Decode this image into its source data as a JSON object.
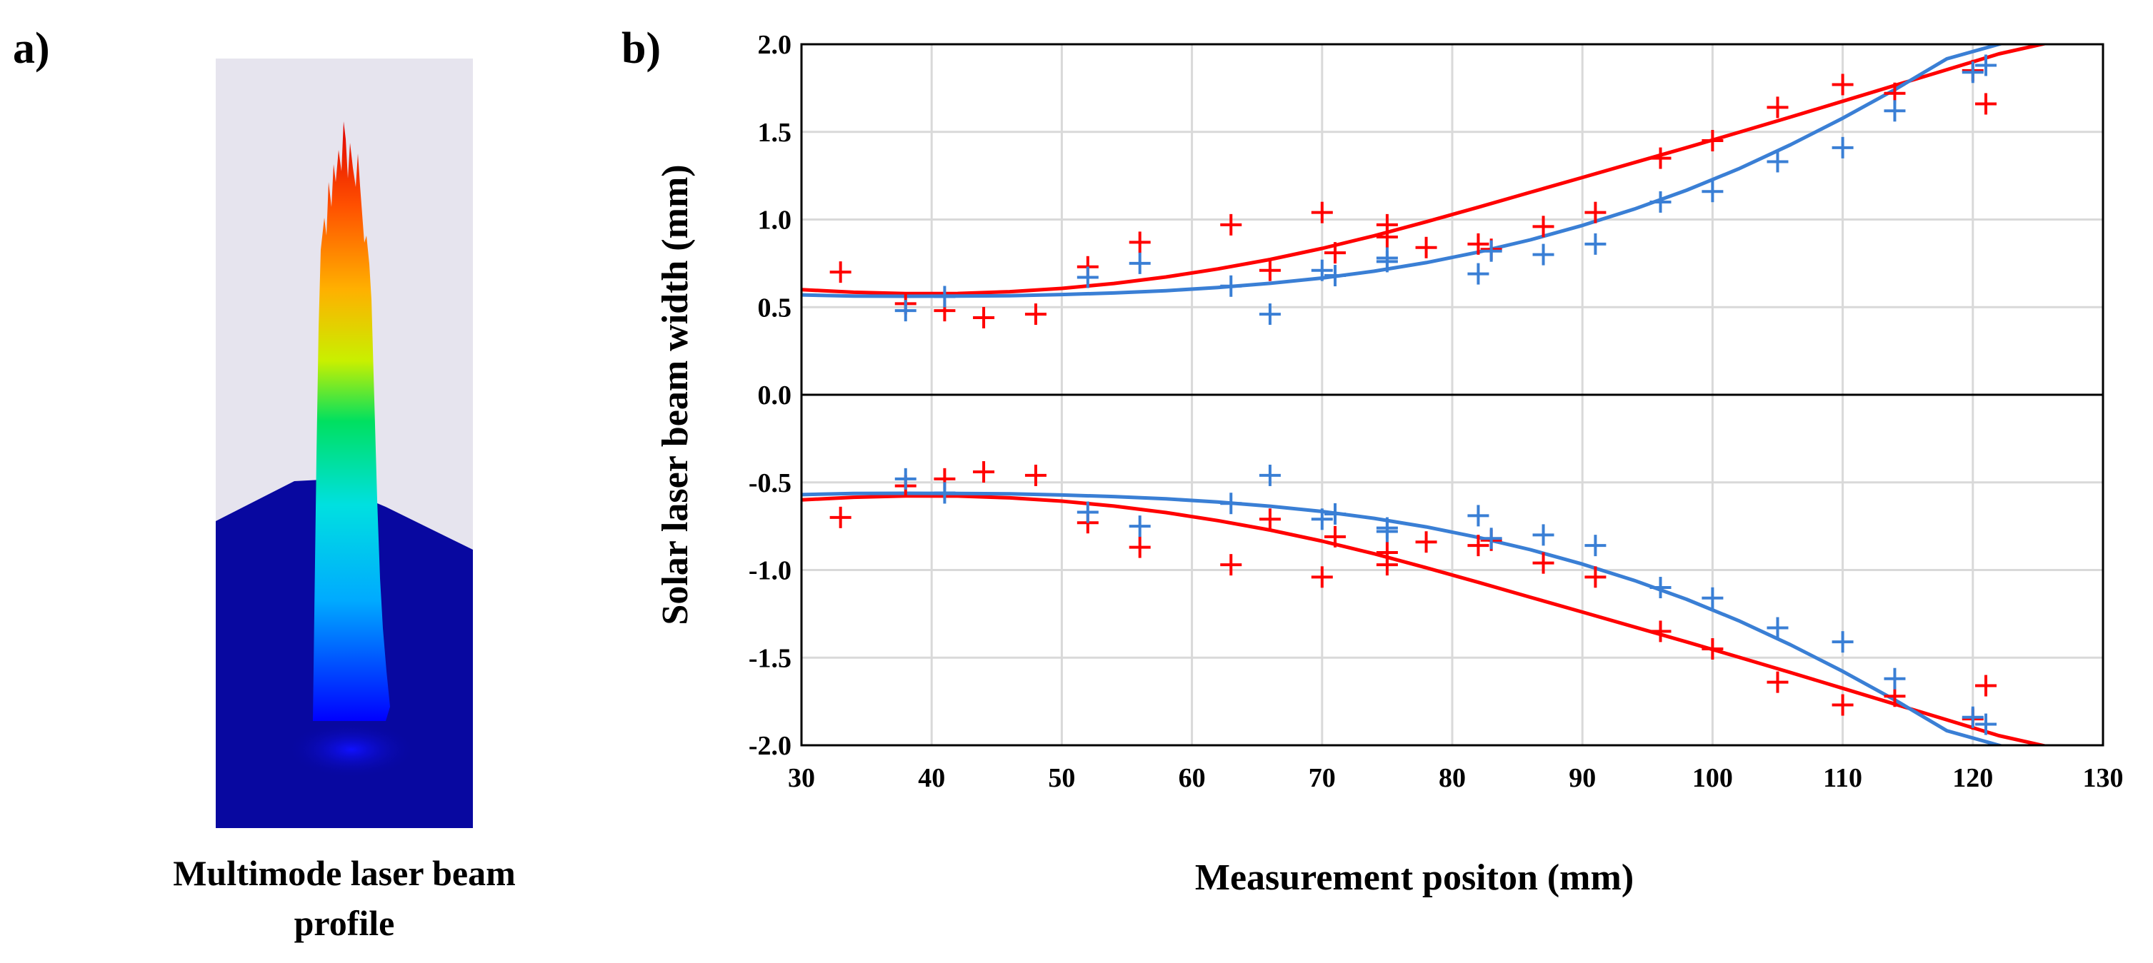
{
  "panel_a": {
    "label": "a)",
    "caption_line1": "Multimode laser beam",
    "caption_line2": "profile",
    "colors": {
      "background": "#e6e4ee",
      "base": "#0808a0",
      "peak": "#e00000"
    }
  },
  "panel_b": {
    "label": "b)"
  },
  "chart_data": {
    "type": "scatter",
    "title": "",
    "xlabel": "Measurement positon (mm)",
    "ylabel": "Solar laser beam width (mm)",
    "xlim": [
      30,
      130
    ],
    "ylim": [
      -2.0,
      2.0
    ],
    "xticks": [
      30,
      40,
      50,
      60,
      70,
      80,
      90,
      100,
      110,
      120,
      130
    ],
    "xtick_labels": [
      "30",
      "40",
      "50",
      "60",
      "70",
      "80",
      "90",
      "100",
      "110",
      "120",
      "130"
    ],
    "yticks": [
      2.0,
      1.5,
      1.0,
      0.5,
      0.0,
      -0.5,
      -1.0,
      -1.5,
      -2.0
    ],
    "ytick_labels": [
      "2.0",
      "1.5",
      "1.0",
      "0.5",
      "0.0",
      "-0.5",
      "-1.0",
      "-1.5",
      "-2.0"
    ],
    "grid": true,
    "legend": "none",
    "series": [
      {
        "name": "red measurements",
        "color": "#ff0000",
        "marker": "plus",
        "symmetric": true,
        "x": [
          33,
          38,
          41,
          44,
          48,
          52,
          56,
          63,
          66,
          70,
          71,
          75,
          75,
          78,
          82,
          83,
          87,
          91,
          96,
          100,
          105,
          110,
          114,
          120,
          121
        ],
        "y": [
          0.7,
          0.52,
          0.48,
          0.44,
          0.46,
          0.73,
          0.87,
          0.97,
          0.71,
          1.04,
          0.81,
          0.97,
          0.9,
          0.84,
          0.86,
          0.83,
          0.96,
          1.04,
          1.35,
          1.45,
          1.64,
          1.77,
          1.72,
          1.85,
          1.66
        ]
      },
      {
        "name": "blue measurements",
        "color": "#3a7fd5",
        "marker": "plus",
        "symmetric": true,
        "x": [
          38,
          41,
          52,
          56,
          63,
          66,
          70,
          71,
          75,
          75,
          82,
          83,
          87,
          91,
          96,
          100,
          105,
          110,
          114,
          120,
          121
        ],
        "y": [
          0.48,
          0.56,
          0.67,
          0.75,
          0.62,
          0.46,
          0.71,
          0.68,
          0.78,
          0.76,
          0.69,
          0.82,
          0.8,
          0.86,
          1.1,
          1.16,
          1.33,
          1.41,
          1.62,
          1.84,
          1.88
        ]
      },
      {
        "name": "red fit",
        "color": "#ff0000",
        "marker": "line",
        "symmetric": true,
        "x": [
          30,
          34,
          38,
          42,
          46,
          50,
          54,
          58,
          62,
          66,
          70,
          74,
          78,
          82,
          86,
          90,
          94,
          98,
          102,
          106,
          110,
          114,
          118,
          122,
          126.5
        ],
        "y": [
          0.6,
          0.585,
          0.577,
          0.578,
          0.588,
          0.607,
          0.635,
          0.672,
          0.718,
          0.772,
          0.835,
          0.907,
          0.987,
          1.07,
          1.155,
          1.24,
          1.325,
          1.41,
          1.497,
          1.585,
          1.675,
          1.765,
          1.855,
          1.945,
          2.02
        ]
      },
      {
        "name": "blue fit",
        "color": "#3a7fd5",
        "marker": "line",
        "symmetric": true,
        "x": [
          30,
          34,
          38,
          42,
          46,
          50,
          54,
          58,
          62,
          66,
          70,
          74,
          78,
          82,
          86,
          90,
          94,
          98,
          102,
          106,
          110,
          114,
          118,
          122,
          123.5
        ],
        "y": [
          0.57,
          0.563,
          0.562,
          0.563,
          0.565,
          0.572,
          0.581,
          0.594,
          0.612,
          0.636,
          0.666,
          0.705,
          0.754,
          0.814,
          0.884,
          0.966,
          1.06,
          1.167,
          1.289,
          1.427,
          1.578,
          1.741,
          1.917,
          2.0,
          2.03
        ]
      }
    ]
  }
}
